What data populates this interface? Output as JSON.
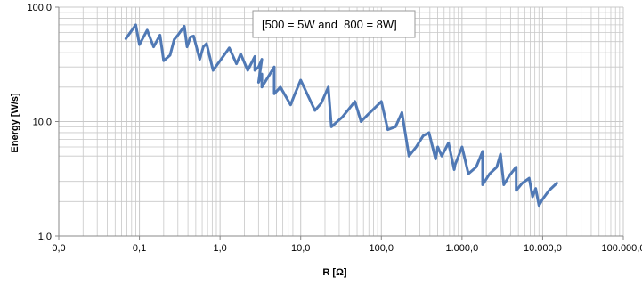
{
  "chart_data": {
    "type": "line",
    "title": "",
    "xlabel": "R [Ω]",
    "ylabel": "Energy [W/s]",
    "xscale": "log",
    "yscale": "log",
    "xlim": [
      0.01,
      100000
    ],
    "ylim": [
      1,
      100
    ],
    "grid": true,
    "legend": "none",
    "annotation": "[500 = 5W and  800 = 8W]",
    "x_tick_labels": [
      "0,0",
      "0,1",
      "1,0",
      "10,0",
      "100,0",
      "1.000,0",
      "10.000,0",
      "100.000,0"
    ],
    "y_tick_labels": [
      "1,0",
      "10,0",
      "100,0"
    ],
    "colors": {
      "line": "#5079b5",
      "grid": "#c8c8c8",
      "axis": "#888888"
    },
    "series": [
      {
        "x": [
          0.068,
          0.09,
          0.1,
          0.125,
          0.15,
          0.18,
          0.2,
          0.24,
          0.27,
          0.3,
          0.36,
          0.39,
          0.43,
          0.47,
          0.56,
          0.62,
          0.68,
          0.82,
          1.0,
          1.3,
          1.6,
          1.8,
          2.2,
          2.7,
          2.7,
          3.0,
          3.3,
          3.0,
          3.3,
          3.3,
          4.7,
          4.7,
          5.6,
          7.5,
          8.2,
          10.0,
          15.0,
          18.0,
          22.0,
          24.0,
          33.0,
          47.0,
          56.0,
          68.0,
          100.0,
          120.0,
          150.0,
          180.0,
          220.0,
          270.0,
          330.0,
          390.0,
          470.0,
          500.0,
          560.0,
          680.0,
          800.0,
          820.0,
          1000.0,
          1200.0,
          1500.0,
          1800.0,
          1800.0,
          2200.0,
          2700.0,
          3000.0,
          3300.0,
          3900.0,
          4700.0,
          4700.0,
          5600.0,
          6800.0,
          7500.0,
          8200.0,
          9000.0,
          10000.0,
          12000.0,
          15000.0
        ],
        "y": [
          53,
          70,
          47,
          63,
          45,
          57,
          34,
          38,
          52,
          57,
          68,
          45,
          55,
          56,
          35,
          45,
          48,
          28,
          34,
          44,
          32,
          39,
          28,
          37,
          28,
          30,
          35,
          22,
          26,
          20,
          30,
          17.5,
          20,
          14,
          16.5,
          23,
          12.5,
          14.5,
          20,
          9,
          11,
          15,
          10,
          11.5,
          15,
          8.5,
          9,
          12,
          5,
          6,
          7.5,
          8,
          4.7,
          6,
          5,
          6.5,
          3.8,
          4.2,
          6,
          3.5,
          4,
          5.5,
          2.8,
          3.5,
          4,
          5.2,
          2.8,
          3.4,
          4,
          2.5,
          2.9,
          3.2,
          2.2,
          2.6,
          1.85,
          2.1,
          2.5,
          2.9
        ]
      }
    ]
  }
}
